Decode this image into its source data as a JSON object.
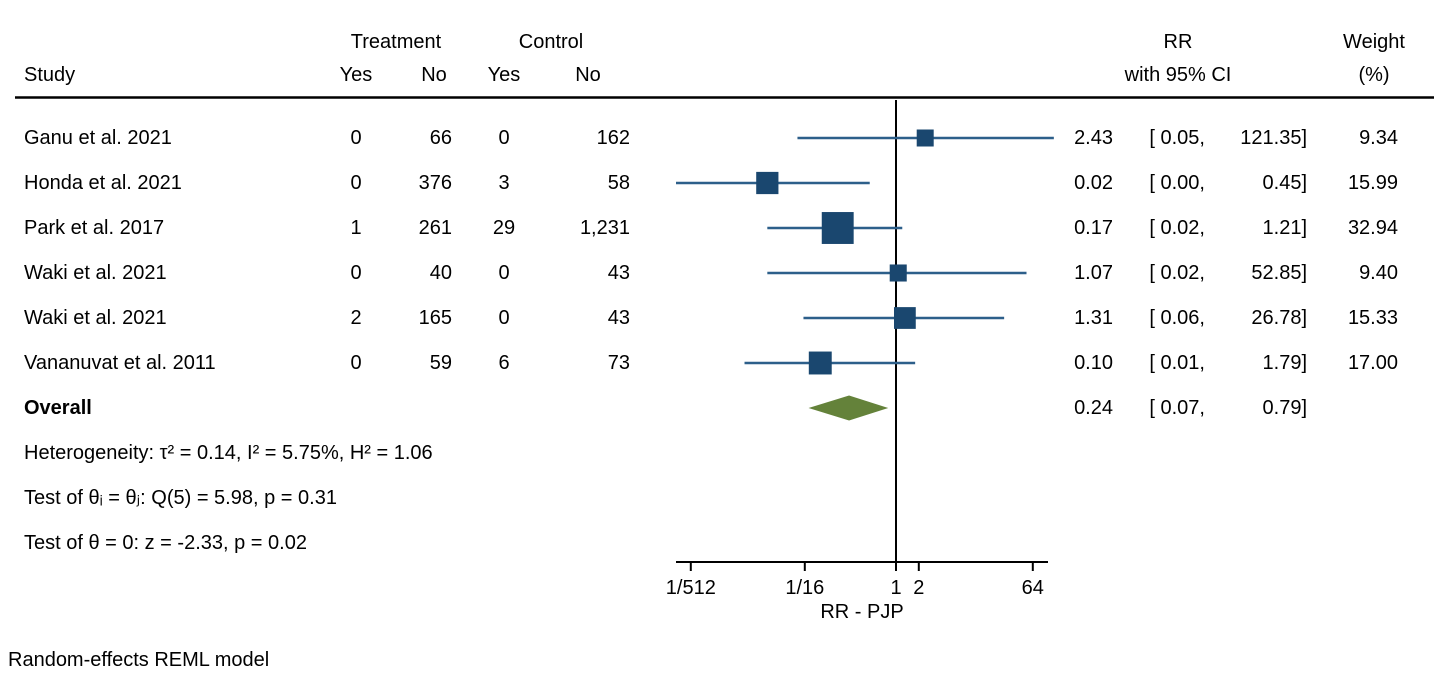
{
  "header": {
    "study": "Study",
    "treatment_group": "Treatment",
    "control_group": "Control",
    "treatment_yes": "Yes",
    "treatment_no": "No",
    "control_yes": "Yes",
    "control_no": "No",
    "effect_line1": "RR",
    "effect_line2": "with 95% CI",
    "weight_line1": "Weight",
    "weight_line2": "(%)"
  },
  "colors": {
    "marker_square": "#1A476F",
    "ci_line": "#2D5F8A",
    "diamond": "#64823A",
    "axis": "#000000",
    "text": "#000000"
  },
  "chart_data": {
    "type": "forest",
    "effect_measure": "RR",
    "xlabel": "RR - PJP",
    "x_scale": "log2",
    "ref_line_value": 1,
    "x_ticks": [
      {
        "label": "1/512",
        "value": 0.001953125
      },
      {
        "label": "1/16",
        "value": 0.0625
      },
      {
        "label": "1",
        "value": 1
      },
      {
        "label": "2",
        "value": 2
      },
      {
        "label": "64",
        "value": 64
      }
    ],
    "studies": [
      {
        "study": "Ganu et al. 2021",
        "treatment_yes": 0,
        "treatment_no": 66,
        "control_yes": 0,
        "control_no": 162,
        "rr": 2.43,
        "ci_low": 0.05,
        "ci_high": 121.35,
        "weight": 9.34
      },
      {
        "study": "Honda et al. 2021",
        "treatment_yes": 0,
        "treatment_no": 376,
        "control_yes": 3,
        "control_no": 58,
        "rr": 0.02,
        "ci_low": 0.0,
        "ci_high": 0.45,
        "weight": 15.99
      },
      {
        "study": "Park et al. 2017",
        "treatment_yes": 1,
        "treatment_no": 261,
        "control_yes": 29,
        "control_no": 1231,
        "rr": 0.17,
        "ci_low": 0.02,
        "ci_high": 1.21,
        "weight": 32.94
      },
      {
        "study": "Waki et al. 2021",
        "treatment_yes": 0,
        "treatment_no": 40,
        "control_yes": 0,
        "control_no": 43,
        "rr": 1.07,
        "ci_low": 0.02,
        "ci_high": 52.85,
        "weight": 9.4
      },
      {
        "study": "Waki et al. 2021",
        "treatment_yes": 2,
        "treatment_no": 165,
        "control_yes": 0,
        "control_no": 43,
        "rr": 1.31,
        "ci_low": 0.06,
        "ci_high": 26.78,
        "weight": 15.33
      },
      {
        "study": "Vananuvat et al. 2011",
        "treatment_yes": 0,
        "treatment_no": 59,
        "control_yes": 6,
        "control_no": 73,
        "rr": 0.1,
        "ci_low": 0.01,
        "ci_high": 1.79,
        "weight": 17.0
      }
    ],
    "overall": {
      "label": "Overall",
      "rr": 0.24,
      "ci_low": 0.07,
      "ci_high": 0.79
    },
    "heterogeneity": {
      "tau2": 0.14,
      "I2_pct": 5.75,
      "H2": 1.06
    },
    "test_homogeneity": {
      "Q_df": 5,
      "Q": 5.98,
      "p": 0.31
    },
    "test_overall_effect": {
      "z": -2.33,
      "p": 0.02
    },
    "notes": [
      "Heterogeneity: τ² = 0.14, I² = 5.75%, H² = 1.06",
      "Test of θᵢ = θⱼ: Q(5) = 5.98, p = 0.31",
      "Test of θ = 0: z = -2.33, p = 0.02"
    ],
    "footnote": "Random-effects REML model"
  }
}
